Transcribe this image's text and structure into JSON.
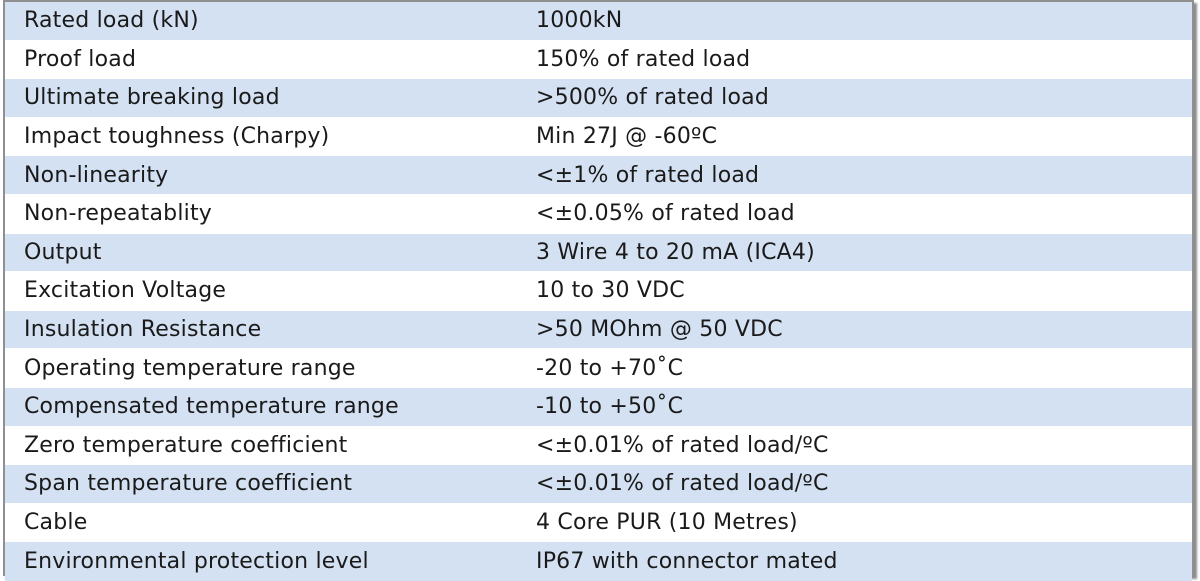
{
  "spec_table": {
    "rows": [
      {
        "label": "Rated load (kN)",
        "value": "1000kN"
      },
      {
        "label": "Proof load",
        "value": "150% of rated load"
      },
      {
        "label": "Ultimate breaking load",
        "value": ">500% of rated load"
      },
      {
        "label": "Impact toughness (Charpy)",
        "value": "Min 27J @ -60ºC"
      },
      {
        "label": "Non-linearity",
        "value": "<±1% of rated load"
      },
      {
        "label": "Non-repeatablity",
        "value": "<±0.05% of rated load"
      },
      {
        "label": "Output",
        "value": "3 Wire 4 to 20 mA (ICA4)"
      },
      {
        "label": "Excitation Voltage",
        "value": "10 to 30 VDC"
      },
      {
        "label": "Insulation Resistance",
        "value": ">50 MOhm @ 50 VDC"
      },
      {
        "label": "Operating temperature range",
        "value": "-20 to +70˚C"
      },
      {
        "label": "Compensated temperature range",
        "value": "-10 to +50˚C"
      },
      {
        "label": "Zero temperature coefficient",
        "value": "<±0.01% of rated load/ºC"
      },
      {
        "label": "Span temperature coefficient",
        "value": "<±0.01% of rated load/ºC"
      },
      {
        "label": "Cable",
        "value": "4 Core PUR (10 Metres)"
      },
      {
        "label": "Environmental protection level",
        "value": "IP67 with connector mated"
      }
    ]
  },
  "colors": {
    "row_shaded": "#d4e1f2",
    "row_plain": "#ffffff",
    "border": "#8f8f8f",
    "text": "#1a1a1a"
  }
}
